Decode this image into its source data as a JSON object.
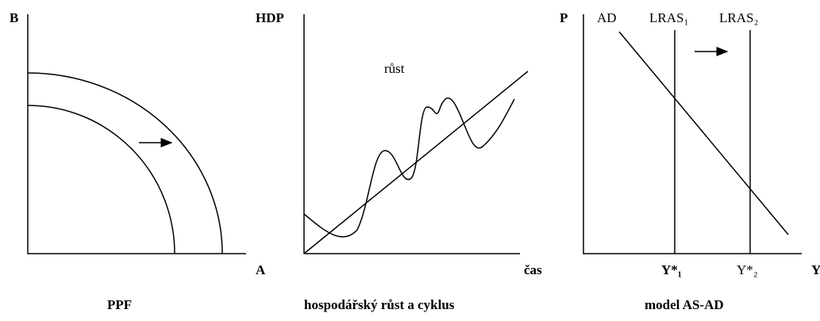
{
  "panels": [
    {
      "y_label": "B",
      "x_label": "A",
      "caption": "PPF"
    },
    {
      "y_label": "HDP",
      "x_label": "čas",
      "caption": "hospodářský růst a cyklus",
      "curve_label": "růst"
    },
    {
      "y_label": "P",
      "x_label": "Y",
      "caption": "model AS-AD",
      "ad_label": "AD",
      "lras1_label": "LRAS₁",
      "lras2_label": "LRAS₂",
      "y1_label": "Y*₁",
      "y2_label": "Y*₂"
    }
  ]
}
